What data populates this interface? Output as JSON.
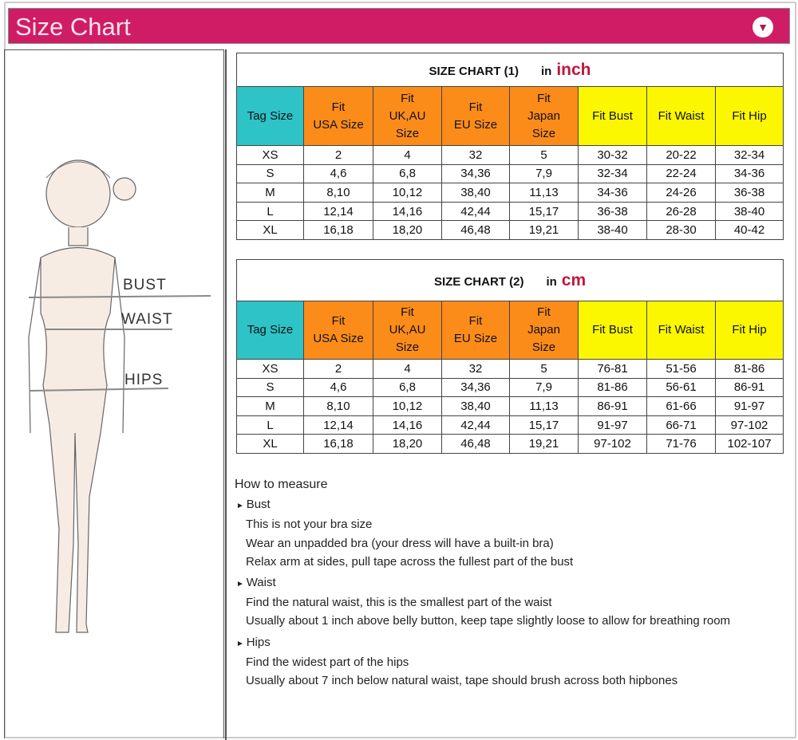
{
  "header": {
    "title": "Size Chart",
    "icon": "chevron-down-circle-icon"
  },
  "figure_labels": {
    "bust": "BUST",
    "waist": "WAIST",
    "hips": "HIPS"
  },
  "colors": {
    "header": "#d01c64",
    "tag_col": "#2ec3c6",
    "size_cols": "#fb8c1a",
    "measure_cols": "#fbf700",
    "unit": "#c0163a"
  },
  "columns": [
    [
      "Tag Size"
    ],
    [
      "Fit",
      "USA Size"
    ],
    [
      "Fit",
      "UK,AU",
      "Size"
    ],
    [
      "Fit",
      "EU Size"
    ],
    [
      "Fit",
      "Japan",
      "Size"
    ],
    [
      "Fit Bust"
    ],
    [
      "Fit Waist"
    ],
    [
      "Fit Hip"
    ]
  ],
  "tables": [
    {
      "title": "SIZE CHART (1)",
      "in": "in",
      "unit": "inch",
      "rows": [
        [
          "XS",
          "2",
          "4",
          "32",
          "5",
          "30-32",
          "20-22",
          "32-34"
        ],
        [
          "S",
          "4,6",
          "6,8",
          "34,36",
          "7,9",
          "32-34",
          "22-24",
          "34-36"
        ],
        [
          "M",
          "8,10",
          "10,12",
          "38,40",
          "11,13",
          "34-36",
          "24-26",
          "36-38"
        ],
        [
          "L",
          "12,14",
          "14,16",
          "42,44",
          "15,17",
          "36-38",
          "26-28",
          "38-40"
        ],
        [
          "XL",
          "16,18",
          "18,20",
          "46,48",
          "19,21",
          "38-40",
          "28-30",
          "40-42"
        ]
      ]
    },
    {
      "title": "SIZE CHART (2)",
      "in": "in",
      "unit": "cm",
      "rows": [
        [
          "XS",
          "2",
          "4",
          "32",
          "5",
          "76-81",
          "51-56",
          "81-86"
        ],
        [
          "S",
          "4,6",
          "6,8",
          "34,36",
          "7,9",
          "81-86",
          "56-61",
          "86-91"
        ],
        [
          "M",
          "8,10",
          "10,12",
          "38,40",
          "11,13",
          "86-91",
          "61-66",
          "91-97"
        ],
        [
          "L",
          "12,14",
          "14,16",
          "42,44",
          "15,17",
          "91-97",
          "66-71",
          "97-102"
        ],
        [
          "XL",
          "16,18",
          "18,20",
          "46,48",
          "19,21",
          "97-102",
          "71-76",
          "102-107"
        ]
      ]
    }
  ],
  "how_to_measure": {
    "title": "How to measure",
    "sections": [
      {
        "name": "Bust",
        "lines": [
          "This is not your bra size",
          "Wear an unpadded bra (your dress will have a built-in bra)",
          "Relax arm at sides, pull tape across the fullest part of the bust"
        ]
      },
      {
        "name": "Waist",
        "lines": [
          "Find the natural waist, this is the smallest part of the waist",
          "Usually about 1 inch above belly button, keep tape slightly loose to allow for breathing room"
        ]
      },
      {
        "name": "Hips",
        "lines": [
          "Find the widest part of the hips",
          "Usually about 7 inch below natural waist, tape should brush across both hipbones"
        ]
      }
    ]
  }
}
